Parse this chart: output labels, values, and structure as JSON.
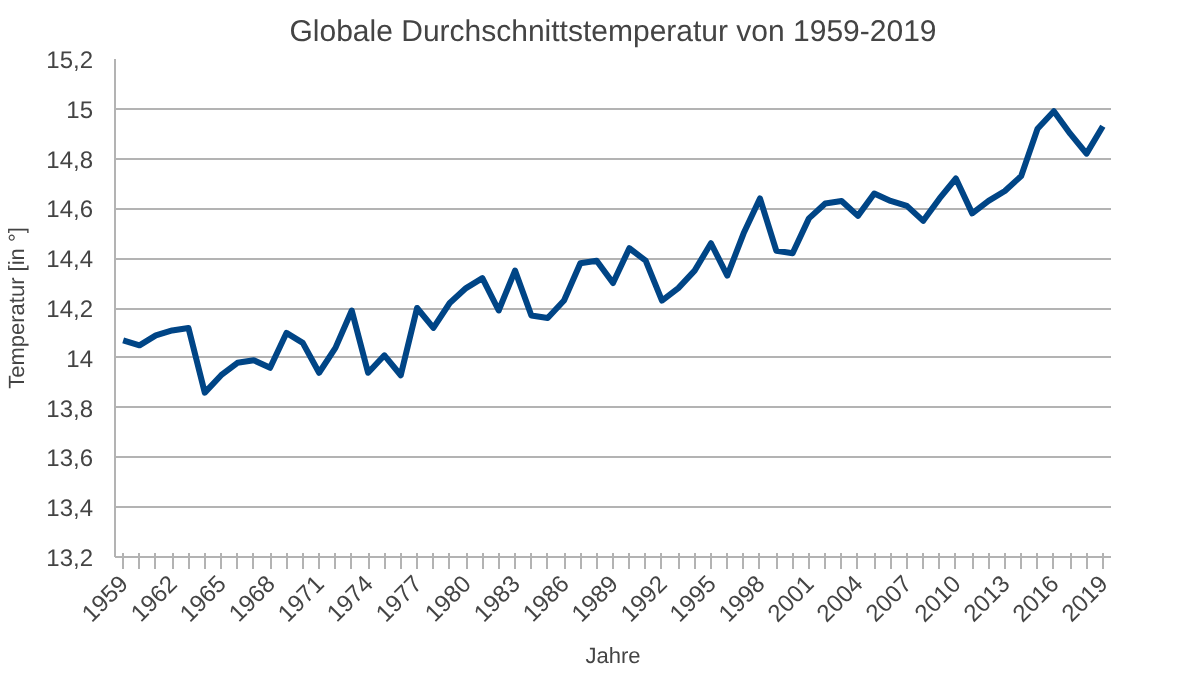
{
  "chart_data": {
    "type": "line",
    "title": "Globale Durchschnittstemperatur von 1959-2019",
    "xlabel": "Jahre",
    "ylabel": "Temperatur [in °]",
    "categories": [
      "1959",
      null,
      null,
      "1962",
      null,
      null,
      "1965",
      null,
      null,
      "1968",
      null,
      null,
      "1971",
      null,
      null,
      "1974",
      null,
      null,
      "1977",
      null,
      null,
      "1980",
      null,
      null,
      "1983",
      null,
      null,
      "1986",
      null,
      null,
      "1989",
      null,
      null,
      "1992",
      null,
      null,
      "1995",
      null,
      null,
      "1998",
      null,
      null,
      "2001",
      null,
      null,
      "2004",
      null,
      null,
      "2007",
      null,
      null,
      "2010",
      null,
      null,
      "2013",
      null,
      null,
      "2016",
      null,
      null,
      "2019"
    ],
    "series": [
      {
        "color": "#004586",
        "values": [
          14.07,
          14.05,
          14.09,
          14.11,
          14.12,
          13.86,
          13.93,
          13.98,
          13.99,
          13.96,
          14.1,
          14.06,
          13.94,
          14.04,
          14.19,
          13.94,
          14.01,
          13.93,
          14.2,
          14.12,
          14.22,
          14.28,
          14.32,
          14.19,
          14.35,
          14.17,
          14.16,
          14.23,
          14.38,
          14.39,
          14.3,
          14.44,
          14.39,
          14.23,
          14.28,
          14.35,
          14.46,
          14.33,
          14.5,
          14.64,
          14.43,
          14.42,
          14.56,
          14.62,
          14.63,
          14.57,
          14.66,
          14.63,
          14.61,
          14.55,
          14.64,
          14.72,
          14.58,
          14.63,
          14.67,
          14.73,
          14.92,
          14.99,
          14.9,
          14.82,
          14.93
        ]
      }
    ],
    "ylim": [
      13.2,
      15.2
    ],
    "yticks": [
      {
        "value": 13.2,
        "label": "13,2"
      },
      {
        "value": 13.4,
        "label": "13,4"
      },
      {
        "value": 13.6,
        "label": "13,6"
      },
      {
        "value": 13.8,
        "label": "13,8"
      },
      14,
      {
        "value": 14.2,
        "label": "14,2"
      },
      {
        "value": 14.4,
        "label": "14,4"
      },
      {
        "value": 14.6,
        "label": "14,6"
      },
      {
        "value": 14.8,
        "label": "14,8"
      },
      15,
      {
        "value": 15.2,
        "label": "15,2"
      }
    ],
    "grid": "y",
    "marker": "none",
    "line_style": "solid"
  }
}
